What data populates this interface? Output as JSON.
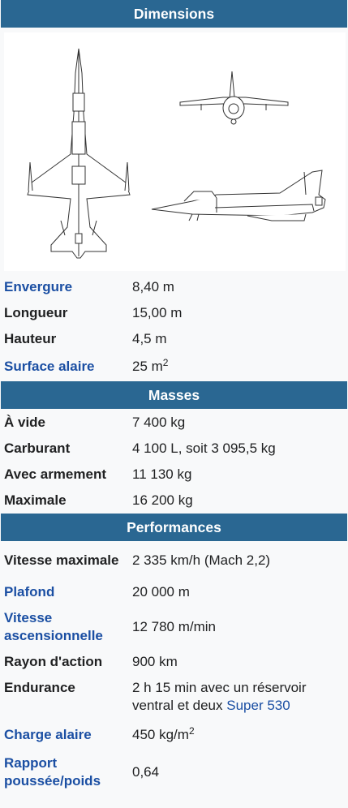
{
  "colors": {
    "header_bg": "#2a6792",
    "link": "#1b4fa3"
  },
  "sections": {
    "dimensions": {
      "title": "Dimensions",
      "rows": [
        {
          "label": "Envergure",
          "value": "8,40 m"
        },
        {
          "label": "Longueur",
          "value": "15,00 m"
        },
        {
          "label": "Hauteur",
          "value": "4,5 m"
        },
        {
          "label": "Surface alaire",
          "value": "25 m",
          "sup": "2"
        }
      ]
    },
    "masses": {
      "title": "Masses",
      "rows": [
        {
          "label": "À vide",
          "value": "7 400 kg"
        },
        {
          "label": "Carburant",
          "value": "4 100 L, soit 3 095,5 kg"
        },
        {
          "label": "Avec armement",
          "value": "11 130 kg"
        },
        {
          "label": "Maximale",
          "value": "16 200 kg"
        }
      ]
    },
    "performances": {
      "title": "Performances",
      "rows": [
        {
          "label": "Vitesse maximale",
          "value": "2 335 km/h (Mach 2,2)"
        },
        {
          "label": "Plafond",
          "value": "20 000 m"
        },
        {
          "label": "Vitesse ascensionnelle",
          "value": "12 780 m/min"
        },
        {
          "label": "Rayon d'action",
          "value": "900 km"
        },
        {
          "label": "Endurance",
          "value": "2 h 15 min avec un réservoir ventral et deux",
          "link": "Super 530"
        },
        {
          "label": "Charge alaire",
          "value": "450 kg/m",
          "sup": "2"
        },
        {
          "label": "Rapport poussée/poids",
          "value": "0,64"
        }
      ]
    }
  }
}
